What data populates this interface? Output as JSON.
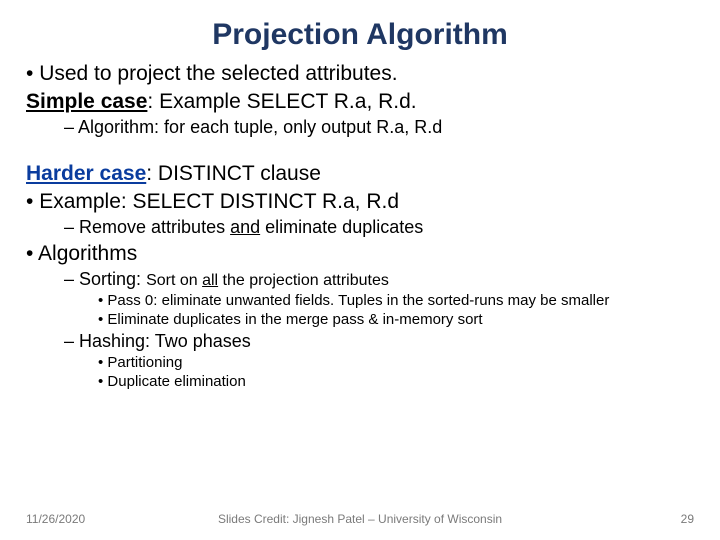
{
  "title": "Projection Algorithm",
  "lines": {
    "bullet_used": "Used to project the selected attributes.",
    "simple_case_label": "Simple case",
    "simple_case_rest": ": Example SELECT R.a, R.d.",
    "algo_simple": "Algorithm: for each tuple, only output R.a, R.d",
    "harder_case_label": "Harder case",
    "harder_case_rest": ": DISTINCT clause",
    "example_distinct": "Example: SELECT DISTINCT R.a, R.d",
    "remove_pre": "Remove attributes ",
    "remove_and": "and",
    "remove_post": " eliminate duplicates",
    "algorithms": "Algorithms",
    "sorting_pre": "Sorting: ",
    "sorting_mid1": "Sort on ",
    "sorting_all": "all",
    "sorting_mid2": " the projection attributes",
    "pass0": "Pass 0: eliminate unwanted fields. Tuples in the sorted-runs may be smaller",
    "elimdup": "Eliminate duplicates in the merge pass & in-memory sort",
    "hashing": " Hashing: Two phases",
    "partitioning": "Partitioning",
    "dupelim": "Duplicate elimination"
  },
  "footer": {
    "date": "11/26/2020",
    "credit": "Slides Credit: Jignesh Patel – University of Wisconsin",
    "page": "29"
  },
  "colors": {
    "title": "#1f3763",
    "blue": "#0a3c9e",
    "text": "#000000",
    "footer": "#7a7a7a",
    "bg": "#ffffff"
  },
  "fonts": {
    "title_size": 30,
    "l1_size": 21,
    "l2_size": 18,
    "l3_size": 15,
    "footer_size": 12
  }
}
